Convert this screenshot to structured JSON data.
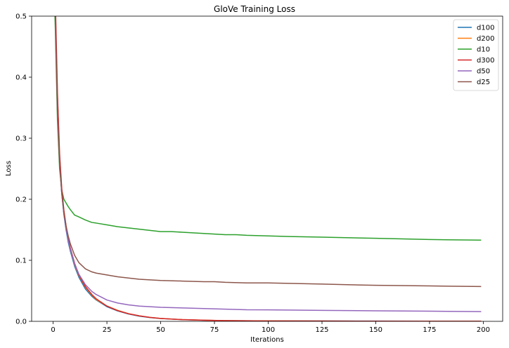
{
  "chart_data": {
    "type": "line",
    "title": "GloVe Training Loss",
    "xlabel": "Iterations",
    "ylabel": "Loss",
    "xlim": [
      -10,
      209
    ],
    "ylim": [
      0,
      0.5
    ],
    "xticks": [
      0,
      25,
      50,
      75,
      100,
      125,
      150,
      175,
      200
    ],
    "yticks": [
      0.0,
      0.1,
      0.2,
      0.3,
      0.4,
      0.5
    ],
    "xtick_labels": [
      "0",
      "25",
      "50",
      "75",
      "100",
      "125",
      "150",
      "175",
      "200"
    ],
    "ytick_labels": [
      "0.0",
      "0.1",
      "0.2",
      "0.3",
      "0.4",
      "0.5"
    ],
    "grid": false,
    "legend_position": "top-right",
    "series": [
      {
        "name": "d100",
        "color": "#1f77b4",
        "points": [
          [
            0,
            0.62
          ],
          [
            1,
            0.5
          ],
          [
            2,
            0.35
          ],
          [
            3,
            0.26
          ],
          [
            4,
            0.21
          ],
          [
            5,
            0.175
          ],
          [
            6,
            0.15
          ],
          [
            7,
            0.13
          ],
          [
            8,
            0.115
          ],
          [
            10,
            0.09
          ],
          [
            12,
            0.072
          ],
          [
            15,
            0.053
          ],
          [
            18,
            0.041
          ],
          [
            20,
            0.035
          ],
          [
            25,
            0.024
          ],
          [
            30,
            0.017
          ],
          [
            35,
            0.012
          ],
          [
            40,
            0.0085
          ],
          [
            45,
            0.0062
          ],
          [
            50,
            0.0046
          ],
          [
            60,
            0.0027
          ],
          [
            70,
            0.0017
          ],
          [
            80,
            0.0012
          ],
          [
            100,
            0.0007
          ],
          [
            125,
            0.0005
          ],
          [
            150,
            0.0004
          ],
          [
            175,
            0.0003
          ],
          [
            199,
            0.0003
          ]
        ]
      },
      {
        "name": "d200",
        "color": "#ff7f0e",
        "points": [
          [
            0,
            0.65
          ],
          [
            1,
            0.52
          ],
          [
            2,
            0.37
          ],
          [
            3,
            0.27
          ],
          [
            4,
            0.215
          ],
          [
            5,
            0.18
          ],
          [
            6,
            0.155
          ],
          [
            7,
            0.135
          ],
          [
            8,
            0.118
          ],
          [
            10,
            0.093
          ],
          [
            12,
            0.075
          ],
          [
            15,
            0.056
          ],
          [
            18,
            0.043
          ],
          [
            20,
            0.036
          ],
          [
            25,
            0.025
          ],
          [
            30,
            0.018
          ],
          [
            35,
            0.0125
          ],
          [
            40,
            0.009
          ],
          [
            45,
            0.0065
          ],
          [
            50,
            0.0048
          ],
          [
            60,
            0.0028
          ],
          [
            70,
            0.0018
          ],
          [
            80,
            0.0012
          ],
          [
            100,
            0.0007
          ],
          [
            125,
            0.0004
          ],
          [
            150,
            0.0003
          ],
          [
            175,
            0.0002
          ],
          [
            199,
            0.0002
          ]
        ]
      },
      {
        "name": "d10",
        "color": "#2ca02c",
        "points": [
          [
            0,
            0.6
          ],
          [
            1,
            0.48
          ],
          [
            2,
            0.33
          ],
          [
            3,
            0.25
          ],
          [
            4,
            0.215
          ],
          [
            5,
            0.2
          ],
          [
            6,
            0.194
          ],
          [
            7,
            0.188
          ],
          [
            8,
            0.183
          ],
          [
            10,
            0.174
          ],
          [
            12,
            0.171
          ],
          [
            15,
            0.166
          ],
          [
            18,
            0.162
          ],
          [
            20,
            0.161
          ],
          [
            25,
            0.158
          ],
          [
            30,
            0.155
          ],
          [
            35,
            0.153
          ],
          [
            40,
            0.151
          ],
          [
            45,
            0.149
          ],
          [
            50,
            0.147
          ],
          [
            55,
            0.147
          ],
          [
            60,
            0.146
          ],
          [
            65,
            0.145
          ],
          [
            70,
            0.144
          ],
          [
            75,
            0.143
          ],
          [
            80,
            0.142
          ],
          [
            85,
            0.142
          ],
          [
            90,
            0.141
          ],
          [
            100,
            0.14
          ],
          [
            110,
            0.139
          ],
          [
            125,
            0.138
          ],
          [
            150,
            0.136
          ],
          [
            175,
            0.134
          ],
          [
            199,
            0.133
          ]
        ]
      },
      {
        "name": "d300",
        "color": "#d62728",
        "points": [
          [
            0,
            0.66
          ],
          [
            1,
            0.53
          ],
          [
            2,
            0.375
          ],
          [
            3,
            0.275
          ],
          [
            4,
            0.218
          ],
          [
            5,
            0.182
          ],
          [
            6,
            0.157
          ],
          [
            7,
            0.137
          ],
          [
            8,
            0.12
          ],
          [
            10,
            0.095
          ],
          [
            12,
            0.076
          ],
          [
            15,
            0.057
          ],
          [
            18,
            0.044
          ],
          [
            20,
            0.037
          ],
          [
            25,
            0.025
          ],
          [
            30,
            0.0175
          ],
          [
            35,
            0.0125
          ],
          [
            40,
            0.009
          ],
          [
            45,
            0.0065
          ],
          [
            50,
            0.0048
          ],
          [
            60,
            0.0028
          ],
          [
            70,
            0.0018
          ],
          [
            80,
            0.0012
          ],
          [
            100,
            0.0006
          ],
          [
            125,
            0.0004
          ],
          [
            150,
            0.0003
          ],
          [
            175,
            0.0002
          ],
          [
            199,
            0.0002
          ]
        ]
      },
      {
        "name": "d50",
        "color": "#9467bd",
        "points": [
          [
            0,
            0.62
          ],
          [
            1,
            0.5
          ],
          [
            2,
            0.345
          ],
          [
            3,
            0.26
          ],
          [
            4,
            0.21
          ],
          [
            5,
            0.176
          ],
          [
            6,
            0.152
          ],
          [
            7,
            0.133
          ],
          [
            8,
            0.118
          ],
          [
            10,
            0.094
          ],
          [
            12,
            0.077
          ],
          [
            15,
            0.06
          ],
          [
            18,
            0.049
          ],
          [
            20,
            0.044
          ],
          [
            25,
            0.035
          ],
          [
            30,
            0.03
          ],
          [
            35,
            0.027
          ],
          [
            40,
            0.025
          ],
          [
            45,
            0.024
          ],
          [
            50,
            0.023
          ],
          [
            60,
            0.022
          ],
          [
            70,
            0.021
          ],
          [
            80,
            0.02
          ],
          [
            90,
            0.019
          ],
          [
            100,
            0.0188
          ],
          [
            125,
            0.018
          ],
          [
            150,
            0.0172
          ],
          [
            175,
            0.0166
          ],
          [
            199,
            0.016
          ]
        ]
      },
      {
        "name": "d25",
        "color": "#8c564b",
        "points": [
          [
            0,
            0.63
          ],
          [
            1,
            0.5
          ],
          [
            2,
            0.345
          ],
          [
            3,
            0.26
          ],
          [
            4,
            0.21
          ],
          [
            5,
            0.178
          ],
          [
            6,
            0.156
          ],
          [
            7,
            0.14
          ],
          [
            8,
            0.127
          ],
          [
            10,
            0.108
          ],
          [
            12,
            0.096
          ],
          [
            15,
            0.086
          ],
          [
            18,
            0.081
          ],
          [
            20,
            0.079
          ],
          [
            25,
            0.076
          ],
          [
            30,
            0.073
          ],
          [
            35,
            0.071
          ],
          [
            40,
            0.069
          ],
          [
            45,
            0.068
          ],
          [
            50,
            0.067
          ],
          [
            60,
            0.066
          ],
          [
            70,
            0.065
          ],
          [
            75,
            0.065
          ],
          [
            80,
            0.064
          ],
          [
            90,
            0.063
          ],
          [
            100,
            0.063
          ],
          [
            125,
            0.061
          ],
          [
            150,
            0.059
          ],
          [
            175,
            0.058
          ],
          [
            199,
            0.057
          ]
        ]
      }
    ]
  }
}
